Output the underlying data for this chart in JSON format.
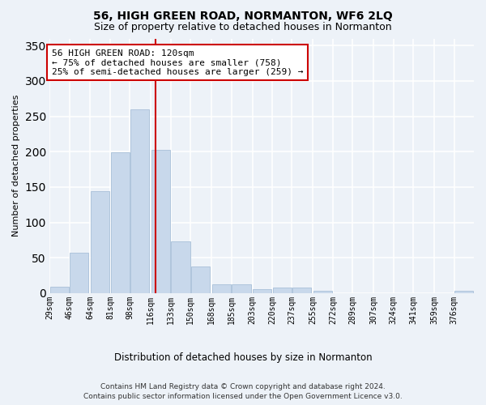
{
  "title": "56, HIGH GREEN ROAD, NORMANTON, WF6 2LQ",
  "subtitle": "Size of property relative to detached houses in Normanton",
  "xlabel": "Distribution of detached houses by size in Normanton",
  "ylabel": "Number of detached properties",
  "bar_color": "#c8d8eb",
  "bar_edgecolor": "#a8c0d8",
  "vline_x": 120,
  "vline_color": "#cc0000",
  "categories": [
    "29sqm",
    "46sqm",
    "64sqm",
    "81sqm",
    "98sqm",
    "116sqm",
    "133sqm",
    "150sqm",
    "168sqm",
    "185sqm",
    "203sqm",
    "220sqm",
    "237sqm",
    "255sqm",
    "272sqm",
    "289sqm",
    "307sqm",
    "324sqm",
    "341sqm",
    "359sqm",
    "376sqm"
  ],
  "bin_edges": [
    29,
    46,
    64,
    81,
    98,
    116,
    133,
    150,
    168,
    185,
    203,
    220,
    237,
    255,
    272,
    289,
    307,
    324,
    341,
    359,
    376
  ],
  "bin_width": 17,
  "values": [
    9,
    57,
    144,
    199,
    260,
    203,
    73,
    38,
    12,
    12,
    6,
    8,
    8,
    3,
    0,
    0,
    0,
    0,
    0,
    0,
    3
  ],
  "ylim": [
    0,
    360
  ],
  "yticks": [
    0,
    50,
    100,
    150,
    200,
    250,
    300,
    350
  ],
  "annotation_title": "56 HIGH GREEN ROAD: 120sqm",
  "annotation_line1": "← 75% of detached houses are smaller (758)",
  "annotation_line2": "25% of semi-detached houses are larger (259) →",
  "annotation_box_color": "#ffffff",
  "annotation_box_edgecolor": "#cc0000",
  "footer_line1": "Contains HM Land Registry data © Crown copyright and database right 2024.",
  "footer_line2": "Contains public sector information licensed under the Open Government Licence v3.0.",
  "background_color": "#edf2f8",
  "grid_color": "#ffffff",
  "spine_color": "#cccccc"
}
